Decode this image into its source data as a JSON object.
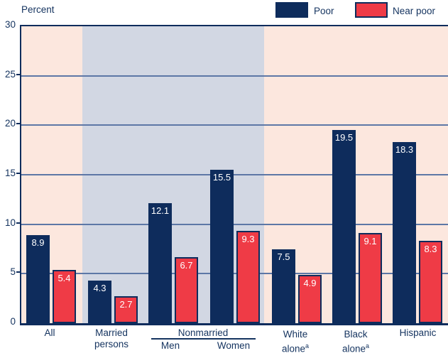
{
  "header": {
    "y_axis_title": "Percent"
  },
  "legend": {
    "poor_label": "Poor",
    "near_poor_label": "Near poor"
  },
  "colors": {
    "poor": "#0e2c5c",
    "near_poor": "#ef3b46",
    "plot_bg": "#fce7de",
    "band_bg": "#d2d7e3",
    "grid": "#5d77a6",
    "axis": "#0e2c5c",
    "text": "#14335f",
    "bar_label": "#ffffff"
  },
  "x_axis": {
    "all": "All",
    "married_line1": "Married",
    "married_line2": "persons",
    "nonmarried": "Nonmarried",
    "men": "Men",
    "women": "Women",
    "white_line1": "White",
    "white_line2": "alone",
    "white_sup": "a",
    "black_line1": "Black",
    "black_line2": "alone",
    "black_sup": "a",
    "hispanic": "Hispanic"
  },
  "chart_data": {
    "type": "bar",
    "title": "",
    "ylabel": "Percent",
    "ylim": [
      0,
      30
    ],
    "y_ticks": [
      30,
      25,
      20,
      15,
      10,
      5,
      0
    ],
    "gridlines": [
      25,
      20,
      15,
      10,
      5
    ],
    "grid": true,
    "legend_position": "top-right",
    "categories": [
      "All",
      "Married persons",
      "Nonmarried Men",
      "Nonmarried Women",
      "White alone",
      "Black alone",
      "Hispanic"
    ],
    "series": [
      {
        "name": "Poor",
        "color": "#0e2c5c",
        "values": [
          8.9,
          4.3,
          12.1,
          15.5,
          7.5,
          19.5,
          18.3
        ]
      },
      {
        "name": "Near poor",
        "color": "#ef3b46",
        "values": [
          5.4,
          2.7,
          6.7,
          9.3,
          4.9,
          9.1,
          8.3
        ]
      }
    ],
    "highlight_band": {
      "covers_groups": [
        "Married persons",
        "Nonmarried Men",
        "Nonmarried Women"
      ],
      "color": "#d2d7e3"
    }
  }
}
